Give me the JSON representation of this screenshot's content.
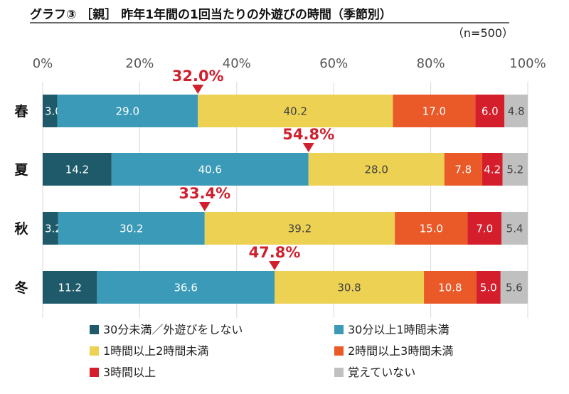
{
  "chart_data": {
    "type": "bar",
    "orientation": "horizontal",
    "stacked": true,
    "title": "グラフ③ ［親］ 昨年1年間の1回当たりの外遊びの時間（季節別）",
    "note": "（n=500）",
    "xlim": [
      0,
      100
    ],
    "xticks": [
      "0%",
      "20%",
      "40%",
      "60%",
      "80%",
      "100%"
    ],
    "grid": true,
    "legend_position": "bottom",
    "categories": [
      "春",
      "夏",
      "秋",
      "冬"
    ],
    "series": [
      {
        "name": "30分未満／外遊びをしない",
        "color": "#1e5a6a",
        "values": [
          3.0,
          14.2,
          3.2,
          11.2
        ]
      },
      {
        "name": "30分以上1時間未満",
        "color": "#3a9ab8",
        "values": [
          29.0,
          40.6,
          30.2,
          36.6
        ]
      },
      {
        "name": "1時間以上2時間未満",
        "color": "#ecd152",
        "values": [
          40.2,
          28.0,
          39.2,
          30.8
        ]
      },
      {
        "name": "2時間以上3時間未満",
        "color": "#ea5a28",
        "values": [
          17.0,
          7.8,
          15.0,
          10.8
        ]
      },
      {
        "name": "3時間以上",
        "color": "#d41e2c",
        "values": [
          6.0,
          4.2,
          7.0,
          5.0
        ]
      },
      {
        "name": "覚えていない",
        "color": "#c0c0c0",
        "values": [
          4.8,
          5.2,
          5.4,
          5.6
        ]
      }
    ],
    "annotations": [
      {
        "category": "春",
        "value": 32.0,
        "label": "32.0%"
      },
      {
        "category": "夏",
        "value": 54.8,
        "label": "54.8%"
      },
      {
        "category": "秋",
        "value": 33.4,
        "label": "33.4%"
      },
      {
        "category": "冬",
        "value": 47.8,
        "label": "47.8%"
      }
    ]
  }
}
